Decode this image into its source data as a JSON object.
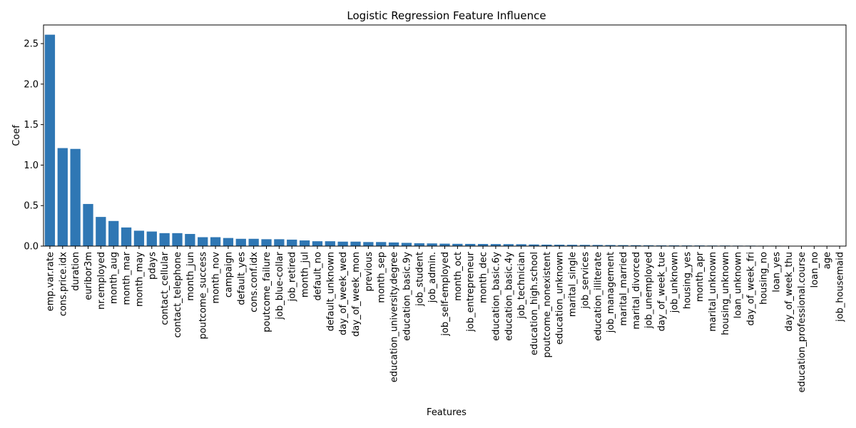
{
  "chart_data": {
    "type": "bar",
    "title": "Logistic Regression Feature Influence",
    "xlabel": "Features",
    "ylabel": "Coef",
    "ylim": [
      0,
      2.73
    ],
    "yticks": [
      0.0,
      0.5,
      1.0,
      1.5,
      2.0,
      2.5
    ],
    "ytick_labels": [
      "0.0",
      "0.5",
      "1.0",
      "1.5",
      "2.0",
      "2.5"
    ],
    "grid": false,
    "bar_color": "#2f77b4",
    "categories": [
      "emp.var.rate",
      "cons.price.idx",
      "duration",
      "euribor3m",
      "nr.employed",
      "month_aug",
      "month_mar",
      "month_may",
      "pdays",
      "contact_cellular",
      "contact_telephone",
      "month_jun",
      "poutcome_success",
      "month_nov",
      "campaign",
      "default_yes",
      "cons.conf.idx",
      "poutcome_failure",
      "job_blue-collar",
      "job_retired",
      "month_jul",
      "default_no",
      "default_unknown",
      "day_of_week_wed",
      "day_of_week_mon",
      "previous",
      "month_sep",
      "education_university.degree",
      "education_basic.9y",
      "job_student",
      "job_admin.",
      "job_self-employed",
      "month_oct",
      "job_entrepreneur",
      "month_dec",
      "education_basic.6y",
      "education_basic.4y",
      "job_technician",
      "education_high.school",
      "poutcome_nonexistent",
      "education_unknown",
      "marital_single",
      "job_services",
      "education_illiterate",
      "job_management",
      "marital_married",
      "marital_divorced",
      "job_unemployed",
      "day_of_week_tue",
      "job_unknown",
      "housing_yes",
      "month_apr",
      "marital_unknown",
      "housing_unknown",
      "loan_unknown",
      "day_of_week_fri",
      "housing_no",
      "loan_yes",
      "day_of_week_thu",
      "education_professional.course",
      "loan_no",
      "age",
      "job_housemaid"
    ],
    "values": [
      2.61,
      1.21,
      1.2,
      0.52,
      0.36,
      0.31,
      0.23,
      0.19,
      0.18,
      0.16,
      0.16,
      0.15,
      0.11,
      0.11,
      0.1,
      0.09,
      0.09,
      0.085,
      0.085,
      0.08,
      0.07,
      0.06,
      0.06,
      0.055,
      0.055,
      0.05,
      0.05,
      0.045,
      0.04,
      0.035,
      0.033,
      0.03,
      0.028,
      0.027,
      0.026,
      0.025,
      0.024,
      0.023,
      0.02,
      0.018,
      0.017,
      0.016,
      0.015,
      0.014,
      0.013,
      0.012,
      0.011,
      0.01,
      0.009,
      0.009,
      0.008,
      0.008,
      0.007,
      0.007,
      0.006,
      0.006,
      0.005,
      0.005,
      0.004,
      0.004,
      0.002,
      0.001,
      0.001
    ]
  }
}
